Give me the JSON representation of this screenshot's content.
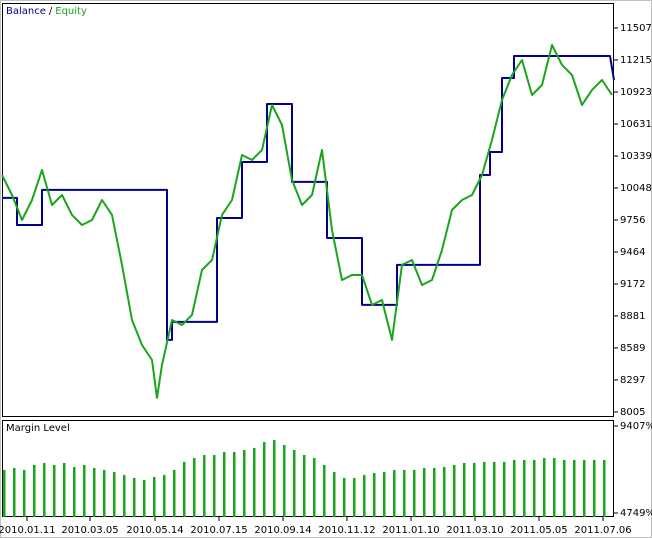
{
  "chart_data": [
    {
      "type": "line",
      "legend_separator": "/",
      "x": [
        0,
        10,
        20,
        30,
        40,
        50,
        60,
        70,
        80,
        90,
        100,
        110,
        120,
        130,
        140,
        150,
        155,
        160,
        170,
        180,
        190,
        200,
        210,
        220,
        230,
        240,
        250,
        260,
        270,
        280,
        290,
        300,
        310,
        320,
        330,
        340,
        350,
        360,
        370,
        380,
        390,
        400,
        410,
        420,
        430,
        440,
        450,
        460,
        470,
        480,
        490,
        500,
        510,
        520,
        530,
        540,
        550,
        560,
        570,
        580,
        590,
        600,
        610
      ],
      "xlim": [
        0,
        612
      ],
      "ylim": [
        7959,
        11735
      ],
      "yticks": [
        8005,
        8297,
        8589,
        8881,
        9172,
        9464,
        9756,
        10048,
        10339,
        10631,
        10923,
        11215,
        11507
      ],
      "series": [
        {
          "name": "Balance",
          "color": "#00008b",
          "x": [
            0,
            15,
            15,
            40,
            40,
            165,
            165,
            170,
            170,
            215,
            215,
            240,
            240,
            265,
            265,
            290,
            290,
            325,
            325,
            360,
            360,
            395,
            395,
            478,
            478,
            488,
            488,
            500,
            500,
            512,
            512,
            608,
            612
          ],
          "values": [
            9957,
            9957,
            9710,
            9710,
            10030,
            10030,
            8662,
            8662,
            8826,
            8826,
            9774,
            9774,
            10285,
            10285,
            10814,
            10814,
            10103,
            10103,
            9592,
            9592,
            8981,
            8981,
            9346,
            9346,
            10166,
            10166,
            10376,
            10376,
            11051,
            11051,
            11252,
            11252,
            11033
          ]
        },
        {
          "name": "Equity",
          "color": "#1aa51a",
          "values": [
            10166,
            9984,
            9756,
            9938,
            10212,
            9893,
            9984,
            9802,
            9710,
            9756,
            9938,
            9802,
            9346,
            8844,
            8616,
            8479,
            8133,
            8434,
            8844,
            8798,
            8890,
            9300,
            9391,
            9802,
            9938,
            10349,
            10303,
            10394,
            10805,
            10622,
            10121,
            9893,
            9984,
            10394,
            9665,
            9209,
            9254,
            9254,
            8981,
            9026,
            8662,
            9346,
            9391,
            9163,
            9209,
            9482,
            9847,
            9938,
            9984,
            10166,
            10486,
            10850,
            11078,
            11215,
            10896,
            10987,
            11352,
            11170,
            11078,
            10805,
            10942,
            11033,
            10896
          ]
        }
      ]
    },
    {
      "type": "bar",
      "title": "Margin Level",
      "color": "#1aa51a",
      "x": [
        0,
        10,
        20,
        30,
        40,
        50,
        60,
        70,
        80,
        90,
        100,
        110,
        120,
        130,
        140,
        150,
        160,
        170,
        180,
        190,
        200,
        210,
        220,
        230,
        240,
        250,
        260,
        270,
        280,
        290,
        300,
        310,
        320,
        330,
        340,
        350,
        360,
        370,
        380,
        390,
        400,
        410,
        420,
        430,
        440,
        450,
        460,
        470,
        480,
        490,
        500,
        510,
        520,
        530,
        540,
        550,
        560,
        570,
        580,
        590,
        600
      ],
      "values": [
        7053,
        7160,
        7053,
        7320,
        7427,
        7320,
        7427,
        7213,
        7320,
        7160,
        7053,
        6946,
        6785,
        6625,
        6518,
        6678,
        6785,
        7053,
        7481,
        7695,
        7855,
        7855,
        8016,
        8016,
        8123,
        8230,
        8551,
        8658,
        8390,
        8123,
        7855,
        7695,
        7320,
        6946,
        6625,
        6625,
        6785,
        6892,
        6946,
        7053,
        7053,
        7053,
        7160,
        7160,
        7213,
        7320,
        7427,
        7427,
        7481,
        7481,
        7481,
        7588,
        7588,
        7588,
        7695,
        7695,
        7588,
        7588,
        7588,
        7588,
        7588
      ],
      "xlim": [
        0,
        612
      ],
      "ylim": [
        4535,
        9728
      ],
      "yticks": [
        {
          "value": 9407,
          "label": "9407%"
        },
        {
          "value": 4749,
          "label": "4749%"
        }
      ],
      "xticks": [
        {
          "value": 25,
          "label": "2010.01.11"
        },
        {
          "value": 88,
          "label": "2010.03.05"
        },
        {
          "value": 153,
          "label": "2010.05.14"
        },
        {
          "value": 217,
          "label": "2010.07.15"
        },
        {
          "value": 281,
          "label": "2010.09.14"
        },
        {
          "value": 345,
          "label": "2010.11.12"
        },
        {
          "value": 409,
          "label": "2011.01.10"
        },
        {
          "value": 473,
          "label": "2011.03.10"
        },
        {
          "value": 537,
          "label": "2011.05.05"
        },
        {
          "value": 601,
          "label": "2011.07.06"
        }
      ]
    }
  ]
}
